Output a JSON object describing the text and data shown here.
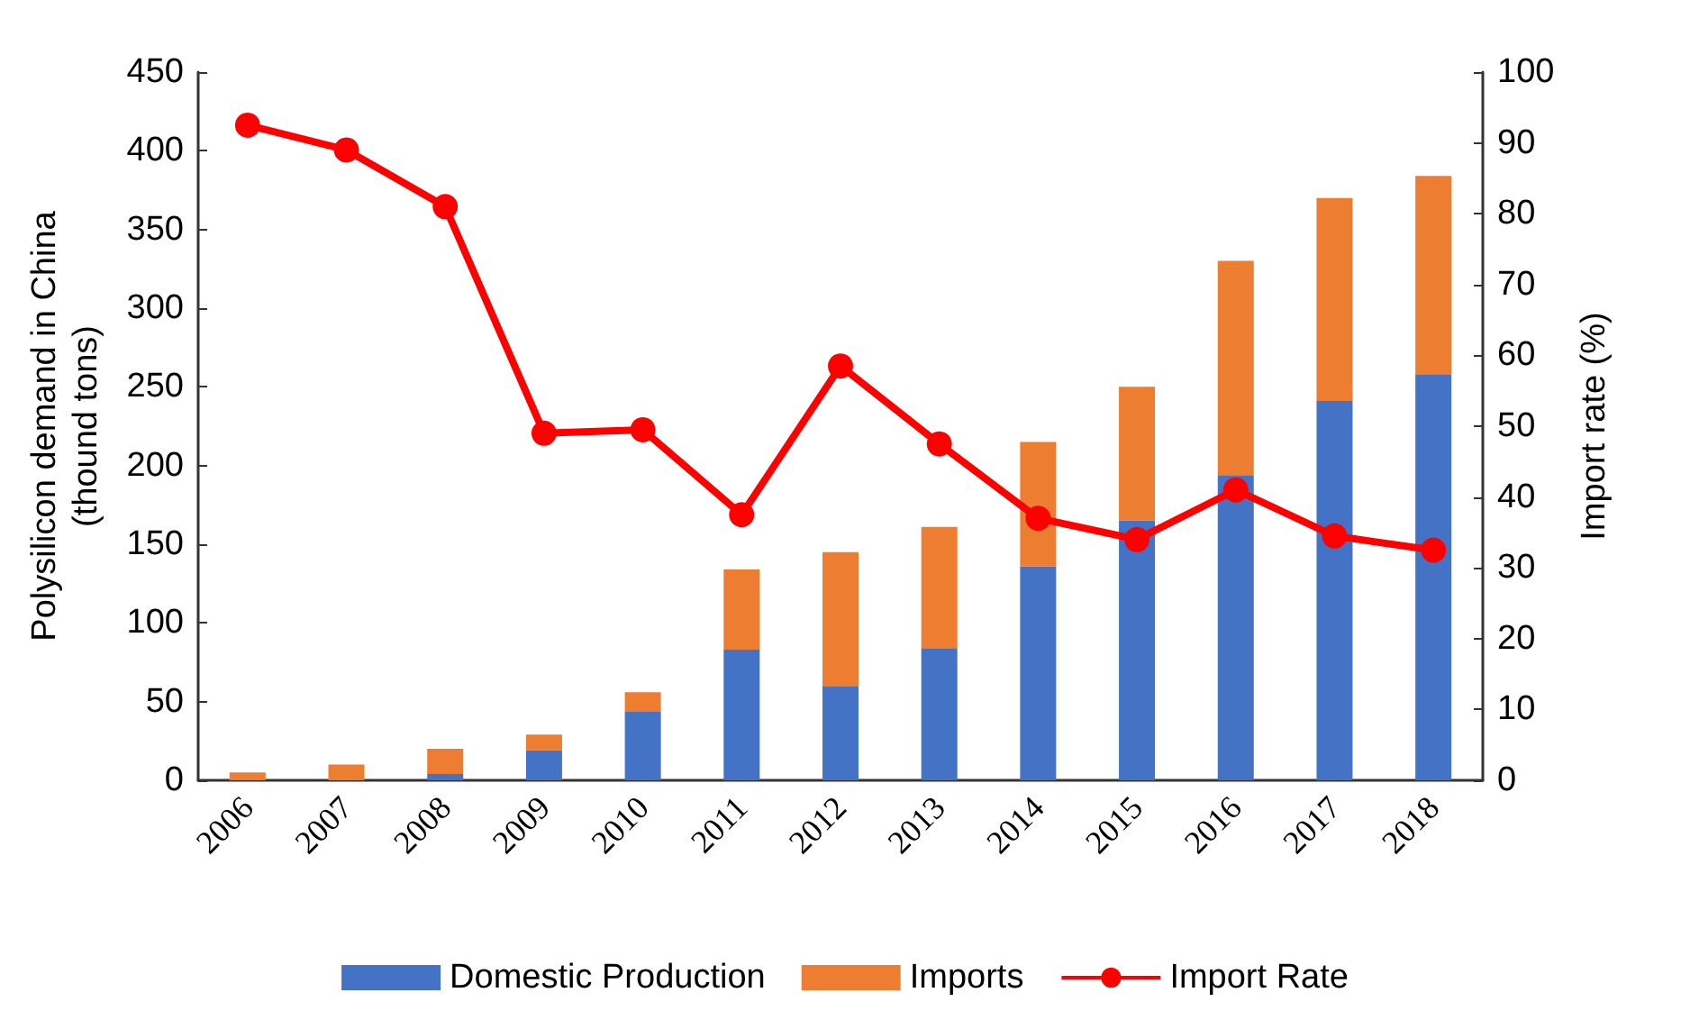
{
  "chart_data": {
    "type": "bar",
    "stacked": true,
    "ylabel": "Polysilicon demand in China\n(thound tons)",
    "y2label": "Import rate (%)",
    "categories": [
      "2006",
      "2007",
      "2008",
      "2009",
      "2010",
      "2011",
      "2012",
      "2013",
      "2014",
      "2015",
      "2016",
      "2017",
      "2018"
    ],
    "series": [
      {
        "name": "Domestic Production",
        "color": "#4472c4",
        "values": [
          0,
          0,
          4,
          19,
          44,
          83,
          60,
          84,
          136,
          165,
          194,
          241,
          258
        ]
      },
      {
        "name": "Imports",
        "color": "#ed7d31",
        "values": [
          5,
          10,
          16,
          10,
          12,
          51,
          85,
          77,
          79,
          85,
          136,
          129,
          126
        ]
      },
      {
        "name": "Import Rate",
        "type": "line",
        "axis": "y2",
        "color": "#ff0000",
        "values": [
          92.5,
          89,
          81,
          49,
          49.5,
          37.5,
          58.5,
          47.5,
          37,
          34,
          41,
          34.5,
          32.5
        ]
      }
    ],
    "ylim": [
      0,
      450
    ],
    "yticks": [
      0,
      50,
      100,
      150,
      200,
      250,
      300,
      350,
      400,
      450
    ],
    "y2lim": [
      0,
      100
    ],
    "y2ticks": [
      0,
      10,
      20,
      30,
      40,
      50,
      60,
      70,
      80,
      90,
      100
    ],
    "grid": false,
    "legend": "bottom",
    "marker": "circle",
    "line_style": "solid"
  }
}
